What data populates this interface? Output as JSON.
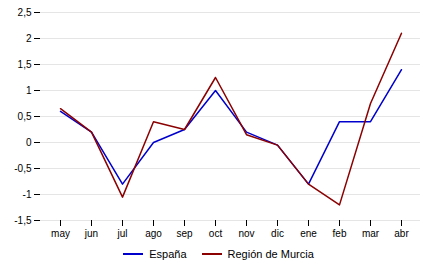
{
  "chart_data": {
    "type": "line",
    "categories": [
      "may",
      "jun",
      "jul",
      "ago",
      "sep",
      "oct",
      "nov",
      "dic",
      "ene",
      "feb",
      "mar",
      "abr"
    ],
    "series": [
      {
        "name": "España",
        "color": "#0000cc",
        "values": [
          0.6,
          0.2,
          -0.8,
          0.0,
          0.25,
          1.0,
          0.2,
          -0.05,
          -0.8,
          0.4,
          0.4,
          1.4
        ]
      },
      {
        "name": "Región de Murcia",
        "color": "#8b0000",
        "values": [
          0.65,
          0.2,
          -1.05,
          0.4,
          0.25,
          1.25,
          0.15,
          -0.05,
          -0.8,
          -1.2,
          0.75,
          2.1
        ]
      }
    ],
    "ylim": [
      -1.5,
      2.5
    ],
    "yticks": [
      {
        "value": -1.5,
        "label": "-1,5"
      },
      -1,
      {
        "value": -0.5,
        "label": "-0,5"
      },
      0,
      {
        "value": 0.5,
        "label": "0,5"
      },
      1,
      {
        "value": 1.5,
        "label": "1,5"
      },
      2,
      {
        "value": 2.5,
        "label": "2,5"
      }
    ],
    "grid": true,
    "legend": "lower center"
  }
}
